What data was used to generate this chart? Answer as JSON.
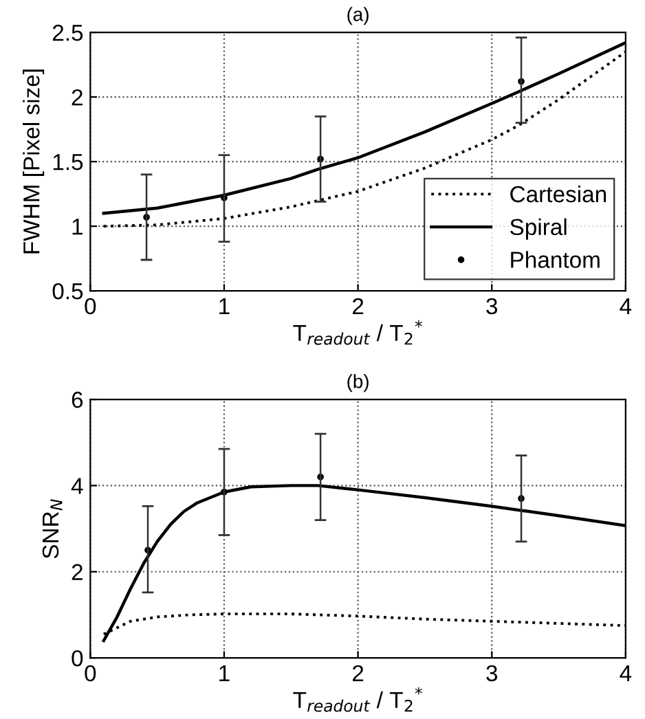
{
  "chart_data": [
    {
      "type": "line",
      "title": "(a)",
      "xlabel": "T$_{readout}$ / T$_{2}$$^{*}$",
      "ylabel": "FWHM [Pixel size]",
      "xlim": [
        0,
        4
      ],
      "ylim": [
        0.5,
        2.5
      ],
      "xticks": [
        0,
        1,
        2,
        3,
        4
      ],
      "yticks": [
        0.5,
        1,
        1.5,
        2,
        2.5
      ],
      "grid": true,
      "legend": "bottom right",
      "series": [
        {
          "name": "Cartesian",
          "color": "#000000",
          "line_style": "dotted",
          "marker": "none",
          "x": [
            0.1,
            0.5,
            1,
            1.5,
            2,
            2.5,
            3,
            3.2,
            3.5,
            4
          ],
          "values": [
            1.0,
            1.01,
            1.06,
            1.15,
            1.27,
            1.45,
            1.67,
            1.78,
            1.98,
            2.35
          ]
        },
        {
          "name": "Spiral",
          "color": "#000000",
          "line_style": "solid",
          "marker": "none",
          "x": [
            0.1,
            0.5,
            1,
            1.5,
            1.7,
            2,
            2.5,
            3,
            3.2,
            3.5,
            4
          ],
          "values": [
            1.1,
            1.14,
            1.24,
            1.37,
            1.44,
            1.53,
            1.73,
            1.95,
            2.04,
            2.18,
            2.42
          ]
        },
        {
          "name": "Phantom",
          "type": "scatter",
          "color": "#000000",
          "marker": "circle",
          "x": [
            0.42,
            1.0,
            1.72,
            3.22
          ],
          "values": [
            1.07,
            1.22,
            1.52,
            2.12
          ],
          "errors": [
            [
              0.74,
              1.4
            ],
            [
              0.88,
              1.55
            ],
            [
              1.19,
              1.85
            ],
            [
              1.8,
              2.46
            ]
          ]
        }
      ]
    },
    {
      "type": "line",
      "title": "(b)",
      "xlabel": "T$_{readout}$ / T$_{2}$$^{*}$",
      "ylabel": "SNR$_{N}$",
      "xlim": [
        0,
        4
      ],
      "ylim": [
        0,
        6
      ],
      "xticks": [
        0,
        1,
        2,
        3,
        4
      ],
      "yticks": [
        0,
        2,
        4,
        6
      ],
      "grid": true,
      "series": [
        {
          "color": "#000000",
          "line_style": "dotted",
          "marker": "none",
          "x": [
            0.1,
            0.3,
            0.5,
            0.75,
            1,
            1.5,
            2,
            2.5,
            3,
            3.5,
            4
          ],
          "values": [
            0.55,
            0.85,
            0.95,
            1.0,
            1.02,
            1.02,
            0.97,
            0.9,
            0.85,
            0.8,
            0.75
          ]
        },
        {
          "color": "#000000",
          "line_style": "solid",
          "marker": "none",
          "x": [
            0.1,
            0.2,
            0.3,
            0.4,
            0.5,
            0.6,
            0.7,
            0.8,
            1,
            1.2,
            1.5,
            1.7,
            2,
            2.5,
            3,
            3.5,
            4
          ],
          "values": [
            0.4,
            0.95,
            1.6,
            2.2,
            2.7,
            3.1,
            3.4,
            3.6,
            3.85,
            3.97,
            4.0,
            4.0,
            3.9,
            3.72,
            3.52,
            3.3,
            3.07
          ]
        },
        {
          "type": "scatter",
          "color": "#000000",
          "marker": "circle",
          "x": [
            0.43,
            1.0,
            1.72,
            3.22
          ],
          "values": [
            2.5,
            3.85,
            4.2,
            3.7
          ],
          "errors": [
            [
              1.52,
              3.52
            ],
            [
              2.85,
              4.85
            ],
            [
              3.2,
              5.2
            ],
            [
              2.7,
              4.7
            ]
          ]
        }
      ]
    }
  ]
}
